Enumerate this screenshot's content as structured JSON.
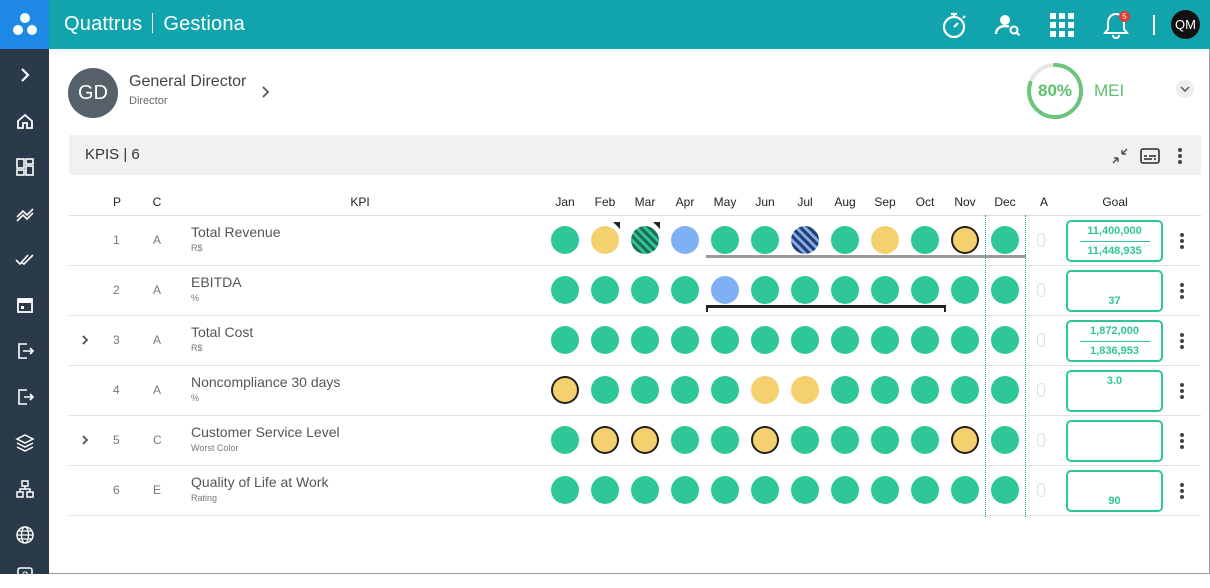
{
  "app": {
    "brand": "Quattrus",
    "module": "Gestiona",
    "user_initials": "QM",
    "notifications": "5"
  },
  "profile": {
    "initials": "GD",
    "title": "General Director",
    "subtitle": "Director"
  },
  "mei": {
    "percent": "80%",
    "label": "MEI",
    "value": 0.8
  },
  "kpi_section": {
    "title": "KPIS | 6"
  },
  "columns": {
    "p": "P",
    "c": "C",
    "kpi": "KPI",
    "a": "A",
    "goal": "Goal",
    "months": [
      "Jan",
      "Feb",
      "Mar",
      "Apr",
      "May",
      "Jun",
      "Jul",
      "Aug",
      "Sep",
      "Oct",
      "Nov",
      "Dec"
    ]
  },
  "rows": [
    {
      "p": "1",
      "c": "A",
      "name": "Total Revenue",
      "unit": "R$",
      "expandable": false,
      "goal_top": "11,400,000",
      "goal_bottom": "11,448,935",
      "status": [
        "g",
        "y",
        "hatch-g",
        "b",
        "g",
        "g",
        "hatch-b",
        "g",
        "y",
        "g",
        "y-ring",
        "g"
      ],
      "flags": [
        1,
        2
      ]
    },
    {
      "p": "2",
      "c": "A",
      "name": "EBITDA",
      "unit": "%",
      "expandable": false,
      "goal_top": "",
      "goal_bottom": "37",
      "status": [
        "g",
        "g",
        "g",
        "g",
        "b",
        "g",
        "g",
        "g",
        "g",
        "g",
        "g",
        "g"
      ],
      "flags": []
    },
    {
      "p": "3",
      "c": "A",
      "name": "Total Cost",
      "unit": "R$",
      "expandable": true,
      "goal_top": "1,872,000",
      "goal_bottom": "1,836,953",
      "status": [
        "g",
        "g",
        "g",
        "g",
        "g",
        "g",
        "g",
        "g",
        "g",
        "g",
        "g",
        "g"
      ],
      "flags": []
    },
    {
      "p": "4",
      "c": "A",
      "name": "Noncompliance 30 days",
      "unit": "%",
      "expandable": false,
      "goal_top": "3.0",
      "goal_bottom": "",
      "status": [
        "y-ring",
        "g",
        "g",
        "g",
        "g",
        "y",
        "y",
        "g",
        "g",
        "g",
        "g",
        "g"
      ],
      "flags": []
    },
    {
      "p": "5",
      "c": "C",
      "name": "Customer Service Level",
      "unit": "Worst Color",
      "expandable": true,
      "goal_top": "",
      "goal_bottom": "",
      "status": [
        "g",
        "y-ring",
        "y-ring",
        "g",
        "g",
        "y-ring",
        "g",
        "g",
        "g",
        "g",
        "y-ring",
        "g"
      ],
      "flags": []
    },
    {
      "p": "6",
      "c": "E",
      "name": "Quality of Life at Work",
      "unit": "Rating",
      "expandable": false,
      "goal_top": "",
      "goal_bottom": "90",
      "status": [
        "g",
        "g",
        "g",
        "g",
        "g",
        "g",
        "g",
        "g",
        "g",
        "g",
        "g",
        "g"
      ],
      "flags": []
    }
  ],
  "icons": {
    "sidebar": [
      "chevron-right-icon",
      "home-icon",
      "dashboard-icon",
      "trend-icon",
      "double-check-icon",
      "calendar-icon",
      "login-icon",
      "logout-icon",
      "layers-icon",
      "hierarchy-icon",
      "globe-icon",
      "help-icon"
    ]
  }
}
